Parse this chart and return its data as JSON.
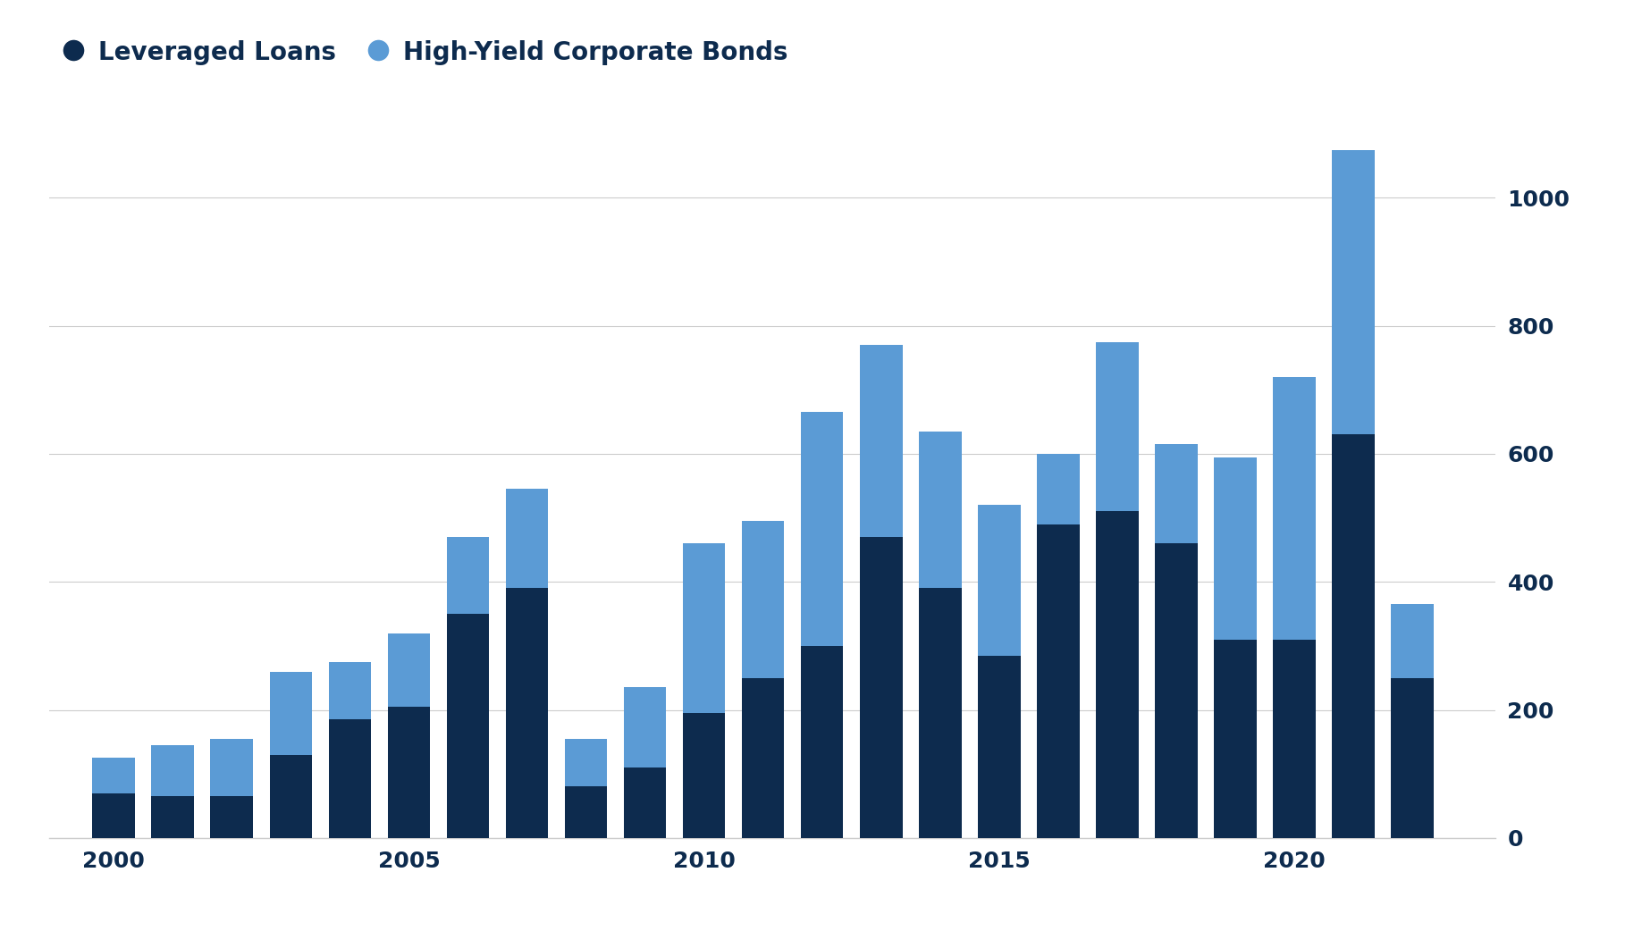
{
  "years": [
    2000,
    2001,
    2002,
    2003,
    2004,
    2005,
    2006,
    2007,
    2008,
    2009,
    2010,
    2011,
    2012,
    2013,
    2014,
    2015,
    2016,
    2017,
    2018,
    2019,
    2020,
    2021,
    2022
  ],
  "leveraged_loans": [
    70,
    65,
    65,
    130,
    185,
    205,
    350,
    390,
    80,
    110,
    195,
    250,
    300,
    470,
    390,
    285,
    490,
    510,
    460,
    310,
    310,
    630,
    250
  ],
  "hy_bonds": [
    55,
    80,
    90,
    130,
    90,
    115,
    120,
    155,
    75,
    125,
    265,
    245,
    365,
    300,
    245,
    235,
    110,
    265,
    155,
    285,
    410,
    445,
    115
  ],
  "color_loans": "#0d2b4e",
  "color_bonds": "#5b9bd5",
  "background_color": "#ffffff",
  "grid_color": "#cccccc",
  "text_color": "#0d2b4e",
  "legend_loans": "Leveraged Loans",
  "legend_bonds": "High-Yield Corporate Bonds",
  "yticks": [
    0,
    200,
    400,
    600,
    800,
    1000
  ],
  "xticks": [
    2000,
    2005,
    2010,
    2015,
    2020
  ],
  "ylim": [
    0,
    1120
  ],
  "xlim_left": 1998.9,
  "xlim_right": 2023.4,
  "bar_width": 0.72
}
